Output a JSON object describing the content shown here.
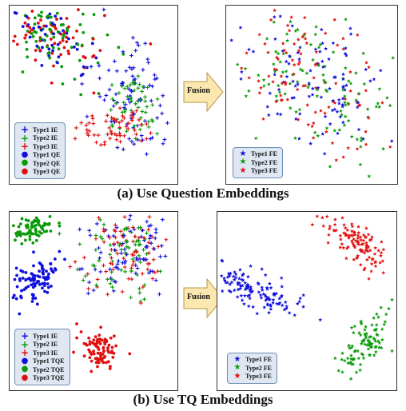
{
  "captions": {
    "a": "(a) Use Question Embeddings",
    "b": "(b) Use TQ Embeddings"
  },
  "arrow_label": "Fusion",
  "colors": {
    "type1": "#1010dd",
    "type2": "#0a9a0a",
    "type3": "#e01010"
  },
  "chart_data": [
    {
      "type": "scatter",
      "panel": "a-left",
      "axes_visible": false,
      "legend_position": "bottom-left",
      "legend": [
        {
          "label": "Type1 IE",
          "marker": "plus",
          "color": "type1"
        },
        {
          "label": "Type2 IE",
          "marker": "plus",
          "color": "type2"
        },
        {
          "label": "Type3 IE",
          "marker": "plus",
          "color": "type3"
        },
        {
          "label": "Type1 QE",
          "marker": "circle",
          "color": "type1"
        },
        {
          "label": "Type2 QE",
          "marker": "circle",
          "color": "type2"
        },
        {
          "label": "Type3 QE",
          "marker": "circle",
          "color": "type3"
        }
      ],
      "clusters": [
        {
          "series": "QE mixed",
          "marker": "circle",
          "colors": [
            "type1",
            "type2",
            "type3"
          ],
          "center": [
            0.24,
            0.2
          ],
          "spread": [
            0.16,
            0.1
          ],
          "angle": 20,
          "n": 190,
          "seed": 11
        },
        {
          "series": "Type1 IE",
          "marker": "plus",
          "colors": [
            "type1"
          ],
          "center": [
            0.74,
            0.5
          ],
          "spread": [
            0.1,
            0.17
          ],
          "angle": 0,
          "n": 85,
          "seed": 21
        },
        {
          "series": "Type2 IE",
          "marker": "plus",
          "colors": [
            "type2"
          ],
          "center": [
            0.74,
            0.56
          ],
          "spread": [
            0.08,
            0.09
          ],
          "angle": 0,
          "n": 55,
          "seed": 31
        },
        {
          "series": "Type3 IE",
          "marker": "plus",
          "colors": [
            "type3"
          ],
          "center": [
            0.62,
            0.7
          ],
          "spread": [
            0.1,
            0.06
          ],
          "angle": -15,
          "n": 60,
          "seed": 41
        }
      ]
    },
    {
      "type": "scatter",
      "panel": "a-right",
      "axes_visible": false,
      "legend_position": "bottom-left",
      "legend": [
        {
          "label": "Type1 FE",
          "marker": "star",
          "color": "type1"
        },
        {
          "label": "Type2 FE",
          "marker": "star",
          "color": "type2"
        },
        {
          "label": "Type3 FE",
          "marker": "star",
          "color": "type3"
        }
      ],
      "clusters": [
        {
          "series": "FE mixed",
          "marker": "star",
          "colors": [
            "type1",
            "type2",
            "type3"
          ],
          "center": [
            0.5,
            0.42
          ],
          "spread": [
            0.34,
            0.17
          ],
          "angle": 32,
          "n": 340,
          "seed": 51
        }
      ]
    },
    {
      "type": "scatter",
      "panel": "b-left",
      "axes_visible": false,
      "legend_position": "bottom-left",
      "legend": [
        {
          "label": "Type1 IE",
          "marker": "plus",
          "color": "type1"
        },
        {
          "label": "Type2 IE",
          "marker": "plus",
          "color": "type2"
        },
        {
          "label": "Type3 IE",
          "marker": "plus",
          "color": "type3"
        },
        {
          "label": "Type1 TQE",
          "marker": "circle",
          "color": "type1"
        },
        {
          "label": "Type2 TQE",
          "marker": "circle",
          "color": "type2"
        },
        {
          "label": "Type3 TQE",
          "marker": "circle",
          "color": "type3"
        }
      ],
      "clusters": [
        {
          "series": "Type2 TQE",
          "marker": "circle",
          "colors": [
            "type2"
          ],
          "center": [
            0.14,
            0.1
          ],
          "spread": [
            0.07,
            0.035
          ],
          "angle": -15,
          "n": 75,
          "seed": 61
        },
        {
          "series": "Type1 TQE",
          "marker": "circle",
          "colors": [
            "type1"
          ],
          "center": [
            0.16,
            0.38
          ],
          "spread": [
            0.09,
            0.05
          ],
          "angle": -40,
          "n": 95,
          "seed": 71
        },
        {
          "series": "Type3 TQE",
          "marker": "circle",
          "colors": [
            "type3"
          ],
          "center": [
            0.53,
            0.78
          ],
          "spread": [
            0.06,
            0.055
          ],
          "angle": 45,
          "n": 85,
          "seed": 81
        },
        {
          "series": "IE mixed",
          "marker": "plus",
          "colors": [
            "type1",
            "type2",
            "type3"
          ],
          "center": [
            0.69,
            0.22
          ],
          "spread": [
            0.14,
            0.12
          ],
          "angle": 0,
          "n": 230,
          "seed": 91
        }
      ]
    },
    {
      "type": "scatter",
      "panel": "b-right",
      "axes_visible": false,
      "legend_position": "bottom-left",
      "legend": [
        {
          "label": "Type1 FE",
          "marker": "star",
          "color": "type1"
        },
        {
          "label": "Type2 FE",
          "marker": "star",
          "color": "type2"
        },
        {
          "label": "Type3 FE",
          "marker": "star",
          "color": "type3"
        }
      ],
      "clusters": [
        {
          "series": "Type3 FE",
          "marker": "star",
          "colors": [
            "type3"
          ],
          "center": [
            0.78,
            0.18
          ],
          "spread": [
            0.11,
            0.05
          ],
          "angle": 38,
          "n": 120,
          "seed": 101
        },
        {
          "series": "Type1 FE",
          "marker": "star",
          "colors": [
            "type1"
          ],
          "center": [
            0.19,
            0.44
          ],
          "spread": [
            0.13,
            0.055
          ],
          "angle": 25,
          "n": 130,
          "seed": 111
        },
        {
          "series": "Type2 FE",
          "marker": "star",
          "colors": [
            "type2"
          ],
          "center": [
            0.83,
            0.73
          ],
          "spread": [
            0.1,
            0.045
          ],
          "angle": -55,
          "n": 100,
          "seed": 121
        }
      ]
    }
  ]
}
